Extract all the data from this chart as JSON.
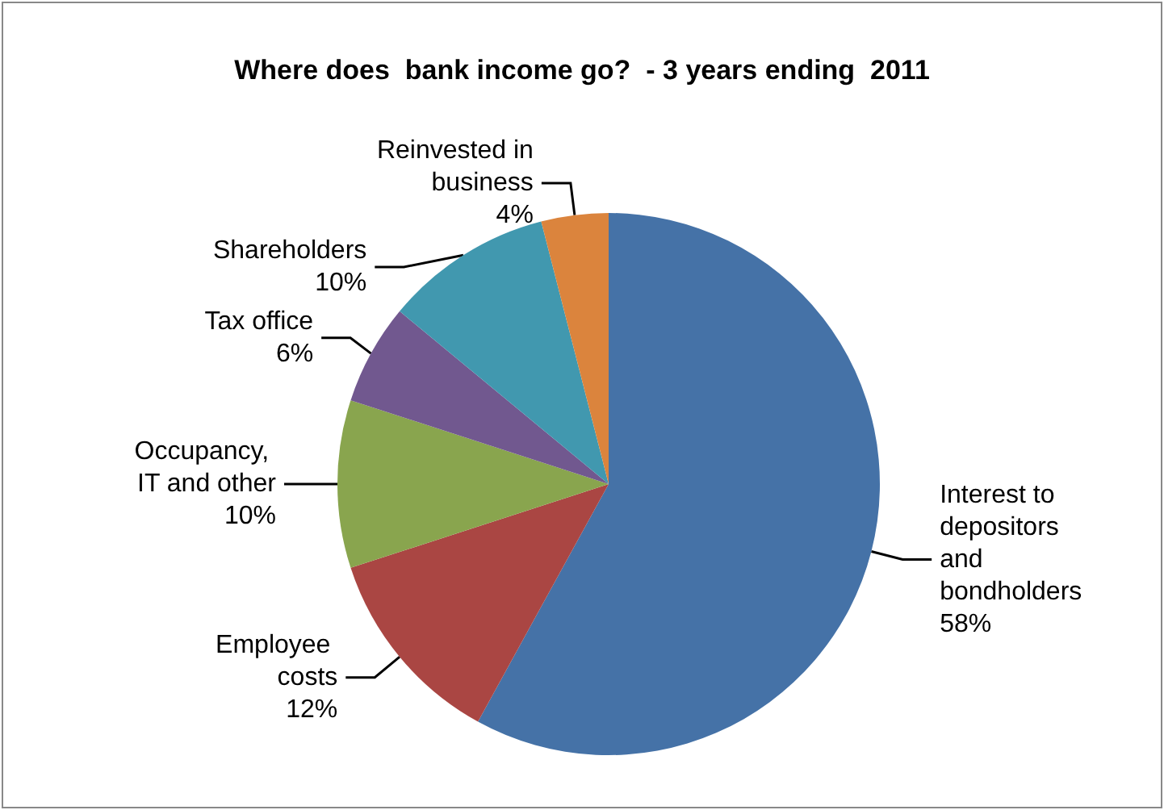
{
  "chart_data": {
    "type": "pie",
    "title": "Where does  bank income go?  - 3 years ending  2011",
    "categories": [
      "Interest to depositors and bondholders",
      "Employee costs",
      "Occupancy, IT and other",
      "Tax office",
      "Shareholders",
      "Reinvested in business"
    ],
    "values": [
      58,
      12,
      10,
      6,
      10,
      4
    ],
    "value_labels": [
      "58%",
      "12%",
      "10%",
      "6%",
      "10%",
      "4%"
    ],
    "colors": [
      "#4572a7",
      "#aa4643",
      "#89a54e",
      "#71588f",
      "#4198af",
      "#db843d"
    ],
    "legend": false
  }
}
